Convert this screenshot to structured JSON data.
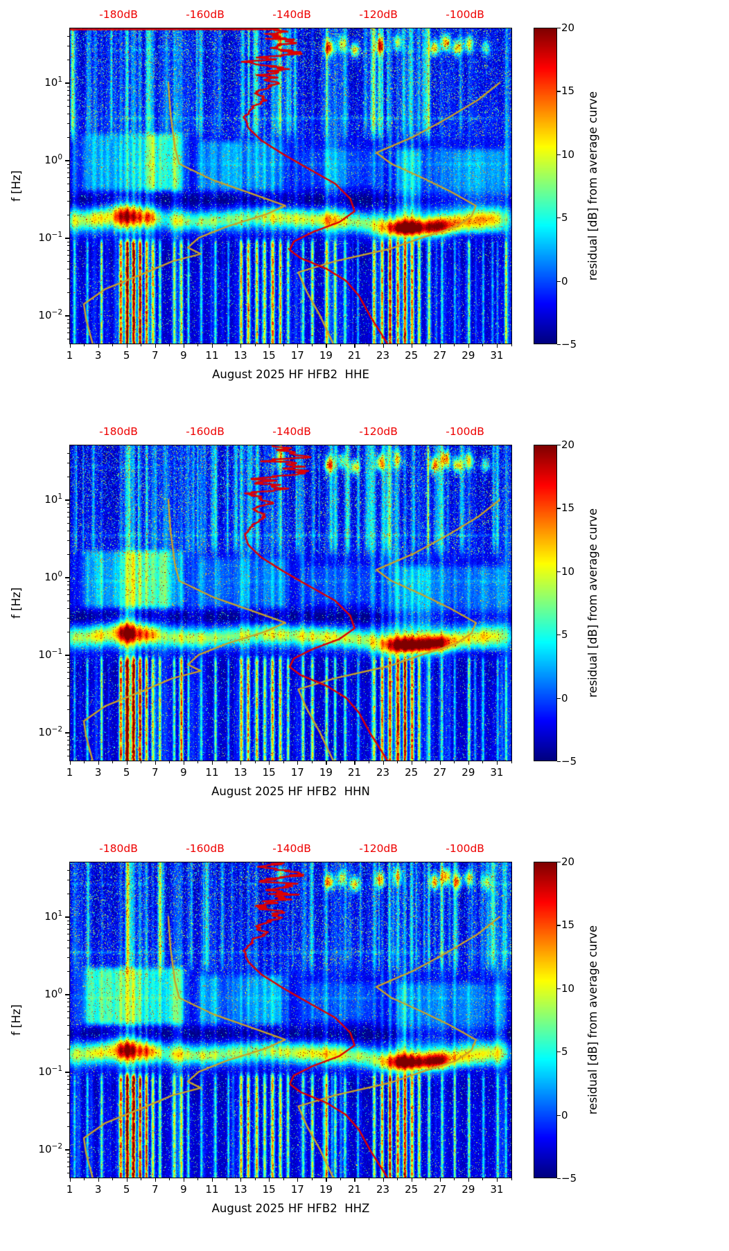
{
  "figure": {
    "background": "#ffffff",
    "frame_color": "#000000",
    "text_color": "#000000"
  },
  "chart_data": {
    "type": "heatmap",
    "n_panels": 3,
    "axes": {
      "ylabel": "f [Hz]",
      "y_scale": "log",
      "f_range_hz": [
        0.0044,
        50
      ],
      "y_ticks": [
        {
          "base": "10",
          "exp": "1",
          "value": 1
        },
        {
          "base": "10",
          "exp": "0",
          "value": 0
        },
        {
          "base": "10",
          "exp": "−1",
          "value": -1
        },
        {
          "base": "10",
          "exp": "−2",
          "value": -2
        }
      ],
      "x_range_days": [
        1,
        32
      ],
      "x_ticks": [
        1,
        3,
        5,
        7,
        9,
        11,
        13,
        15,
        17,
        19,
        21,
        23,
        25,
        27,
        29,
        31
      ],
      "top_axis": {
        "color": "#ee0000",
        "db_range": [
          -191.2,
          -89.3
        ],
        "ticks": [
          {
            "label": "-180dB",
            "db": -180
          },
          {
            "label": "-160dB",
            "db": -160
          },
          {
            "label": "-140dB",
            "db": -140
          },
          {
            "label": "-120dB",
            "db": -120
          },
          {
            "label": "-100dB",
            "db": -100
          }
        ]
      }
    },
    "colorbar": {
      "label": "residual [dB] from average curve",
      "range": [
        -5,
        20
      ],
      "ticks": [
        {
          "label": "20",
          "value": 20
        },
        {
          "label": "15",
          "value": 15
        },
        {
          "label": "10",
          "value": 10
        },
        {
          "label": "5",
          "value": 5
        },
        {
          "label": "0",
          "value": 0
        },
        {
          "label": "−5",
          "value": -5
        }
      ]
    },
    "panels": [
      {
        "component": "HHE",
        "xlabel": "August 2025 HF HFB2  HHE",
        "red_top_edge": true
      },
      {
        "component": "HHN",
        "xlabel": "August 2025 HF HFB2  HHN",
        "red_top_edge": false
      },
      {
        "component": "HHZ",
        "xlabel": "August 2025 HF HFB2  HHZ",
        "red_top_edge": false
      }
    ],
    "overlays": {
      "curves": [
        {
          "name": "station-average-psd",
          "color": "#dd0000",
          "style": "wiggly-top",
          "points_hz_db": [
            [
              49,
              -144
            ],
            [
              38,
              -140.5
            ],
            [
              30,
              -144.5
            ],
            [
              24,
              -140
            ],
            [
              19,
              -146
            ],
            [
              15,
              -142.5
            ],
            [
              12,
              -147
            ],
            [
              9.5,
              -144
            ],
            [
              7.5,
              -148
            ],
            [
              6,
              -146
            ],
            [
              4.8,
              -149
            ],
            [
              3.6,
              -151
            ],
            [
              2.6,
              -150
            ],
            [
              1.8,
              -147
            ],
            [
              1.2,
              -142
            ],
            [
              0.8,
              -136.5
            ],
            [
              0.5,
              -130
            ],
            [
              0.32,
              -126.5
            ],
            [
              0.22,
              -125.5
            ],
            [
              0.16,
              -129
            ],
            [
              0.12,
              -135
            ],
            [
              0.09,
              -139.5
            ],
            [
              0.07,
              -140.5
            ],
            [
              0.055,
              -138
            ],
            [
              0.04,
              -132
            ],
            [
              0.028,
              -127.5
            ],
            [
              0.018,
              -124.5
            ],
            [
              0.01,
              -122
            ],
            [
              0.0044,
              -118
            ]
          ]
        },
        {
          "name": "low-noise-model",
          "color": "#c9a227",
          "points_hz_db": [
            [
              10,
              -168.5
            ],
            [
              4,
              -168
            ],
            [
              1.5,
              -167
            ],
            [
              0.9,
              -166
            ],
            [
              0.55,
              -158
            ],
            [
              0.35,
              -148
            ],
            [
              0.26,
              -141.5
            ],
            [
              0.2,
              -146
            ],
            [
              0.14,
              -155
            ],
            [
              0.1,
              -161.5
            ],
            [
              0.075,
              -164
            ],
            [
              0.062,
              -161
            ],
            [
              0.05,
              -167.5
            ],
            [
              0.035,
              -174
            ],
            [
              0.022,
              -183
            ],
            [
              0.014,
              -188
            ],
            [
              0.009,
              -187.5
            ],
            [
              0.0044,
              -186
            ]
          ]
        },
        {
          "name": "high-noise-model",
          "color": "#c9a227",
          "points_hz_db": [
            [
              10,
              -92
            ],
            [
              6,
              -97
            ],
            [
              3.5,
              -104
            ],
            [
              2,
              -112
            ],
            [
              1.25,
              -120.5
            ],
            [
              0.9,
              -117
            ],
            [
              0.6,
              -110
            ],
            [
              0.4,
              -103.5
            ],
            [
              0.26,
              -97.5
            ],
            [
              0.19,
              -98.5
            ],
            [
              0.14,
              -102
            ],
            [
              0.1,
              -110
            ],
            [
              0.073,
              -117
            ],
            [
              0.05,
              -130
            ],
            [
              0.036,
              -138.5
            ],
            [
              0.02,
              -136.5
            ],
            [
              0.01,
              -133.5
            ],
            [
              0.0044,
              -130.5
            ]
          ]
        }
      ]
    },
    "texture": {
      "low_events": [
        [
          1.3,
          0.06,
          5
        ],
        [
          2.2,
          0.07,
          6
        ],
        [
          3.2,
          0.06,
          9
        ],
        [
          4.55,
          0.09,
          15
        ],
        [
          5.0,
          0.1,
          20
        ],
        [
          5.45,
          0.1,
          19
        ],
        [
          5.9,
          0.09,
          17
        ],
        [
          6.35,
          0.08,
          14
        ],
        [
          6.8,
          0.08,
          11
        ],
        [
          7.3,
          0.07,
          8
        ],
        [
          8.3,
          0.07,
          8
        ],
        [
          8.8,
          0.08,
          10
        ],
        [
          9.3,
          0.06,
          7
        ],
        [
          10.2,
          0.06,
          5
        ],
        [
          11.2,
          0.07,
          6
        ],
        [
          12.1,
          0.06,
          5
        ],
        [
          13.0,
          0.08,
          12
        ],
        [
          13.5,
          0.08,
          13
        ],
        [
          14.1,
          0.08,
          12
        ],
        [
          14.65,
          0.08,
          10
        ],
        [
          15.2,
          0.09,
          13
        ],
        [
          15.75,
          0.08,
          11
        ],
        [
          16.3,
          0.07,
          9
        ],
        [
          17.35,
          0.07,
          8
        ],
        [
          18.0,
          0.08,
          10
        ],
        [
          19.0,
          0.08,
          9
        ],
        [
          19.6,
          0.07,
          8
        ],
        [
          20.3,
          0.07,
          7
        ],
        [
          21.2,
          0.06,
          5
        ],
        [
          22.35,
          0.08,
          10
        ],
        [
          22.9,
          0.08,
          13
        ],
        [
          23.45,
          0.09,
          15
        ],
        [
          24.0,
          0.09,
          14
        ],
        [
          24.5,
          0.09,
          16
        ],
        [
          25.0,
          0.09,
          13
        ],
        [
          25.5,
          0.08,
          11
        ],
        [
          26.2,
          0.07,
          8
        ],
        [
          27.1,
          0.06,
          6
        ],
        [
          28.0,
          0.06,
          5
        ],
        [
          29.0,
          0.07,
          9
        ],
        [
          30.0,
          0.06,
          5
        ],
        [
          31.0,
          0.06,
          4
        ],
        [
          31.6,
          0.06,
          6
        ]
      ],
      "microseism_blobs": [
        [
          1.6,
          0.9,
          -0.78,
          0.1,
          9
        ],
        [
          3.0,
          0.5,
          -0.75,
          0.09,
          7
        ],
        [
          4.9,
          0.85,
          -0.72,
          0.11,
          19
        ],
        [
          6.6,
          0.6,
          -0.74,
          0.09,
          11
        ],
        [
          8.6,
          0.8,
          -0.78,
          0.09,
          9
        ],
        [
          10.5,
          0.9,
          -0.8,
          0.08,
          7
        ],
        [
          12.5,
          1.1,
          -0.76,
          0.09,
          7
        ],
        [
          15.0,
          1.1,
          -0.73,
          0.09,
          8
        ],
        [
          17.5,
          1.2,
          -0.76,
          0.09,
          9
        ],
        [
          19.5,
          0.9,
          -0.78,
          0.09,
          9
        ],
        [
          21.5,
          0.9,
          -0.8,
          0.08,
          7
        ],
        [
          24.6,
          1.5,
          -0.88,
          0.085,
          21
        ],
        [
          26.9,
          0.7,
          -0.85,
          0.08,
          12
        ],
        [
          28.5,
          0.9,
          -0.8,
          0.08,
          8
        ],
        [
          30.5,
          0.9,
          -0.76,
          0.09,
          9
        ]
      ],
      "hazes": [
        [
          1.5,
          9.5,
          -0.45,
          0.4,
          5.5
        ],
        [
          9.5,
          16.5,
          -0.45,
          0.3,
          3.5
        ],
        [
          23.5,
          32,
          -1.0,
          0.2,
          3.0
        ],
        [
          17,
          23,
          -0.4,
          0.2,
          1.5
        ]
      ],
      "top_spots": [
        [
          15.8,
          1.55,
          9
        ],
        [
          19.2,
          1.45,
          15
        ],
        [
          20.1,
          1.5,
          10
        ],
        [
          21.0,
          1.42,
          13
        ],
        [
          22.8,
          1.48,
          14
        ],
        [
          24.0,
          1.52,
          10
        ],
        [
          26.6,
          1.45,
          14
        ],
        [
          27.4,
          1.52,
          15
        ],
        [
          28.2,
          1.45,
          13
        ],
        [
          29.0,
          1.5,
          12
        ],
        [
          30.2,
          1.45,
          8
        ]
      ],
      "h_lines": [
        [
          0.54,
          2.2
        ],
        [
          1.42,
          1.5
        ],
        [
          -0.05,
          1.2
        ]
      ]
    }
  }
}
